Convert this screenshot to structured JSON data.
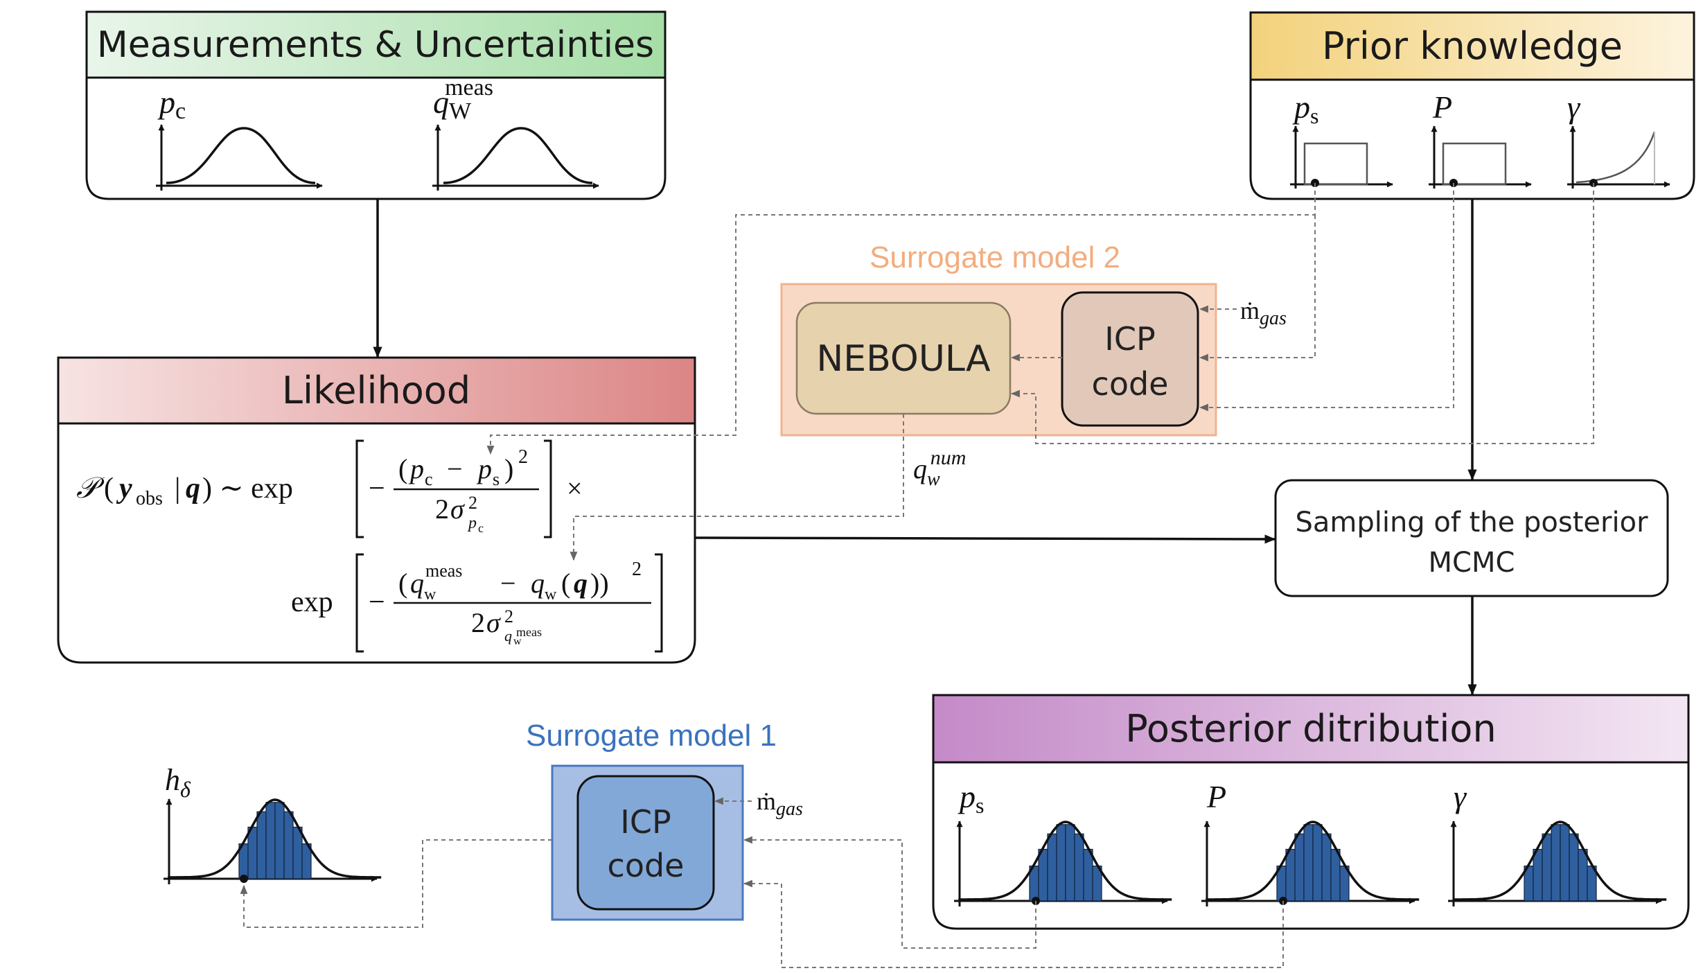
{
  "measurements": {
    "title": "Measurements & Uncertainties",
    "var1": "p",
    "var1_sub": "c",
    "var2": "q",
    "var2_sub": "W",
    "var2_sup": "meas"
  },
  "prior": {
    "title": "Prior knowledge",
    "var1": "p",
    "var1_sub": "s",
    "var2": "P",
    "var3": "γ"
  },
  "likelihood": {
    "title": "Likelihood"
  },
  "surrogate2": {
    "label": "Surrogate model 2",
    "neboula": "NEBOULA",
    "icp_line1": "ICP",
    "icp_line2": "code",
    "mgas": "ṁ",
    "mgas_sub": "gas",
    "qnum": "q",
    "qnum_sub": "w",
    "qnum_sup": "num"
  },
  "sampling": {
    "line1": "Sampling of the posterior",
    "line2": "MCMC"
  },
  "posterior": {
    "title": "Posterior ditribution",
    "var1": "p",
    "var1_sub": "s",
    "var2": "P",
    "var3": "γ"
  },
  "surrogate1": {
    "label": "Surrogate model 1",
    "icp_line1": "ICP",
    "icp_line2": "code",
    "mgas": "ṁ",
    "mgas_sub": "gas",
    "hdelta": "h",
    "hdelta_sub": "δ"
  },
  "colors": {
    "measurements_header_start": "#e9f5ea",
    "measurements_header_end": "#a6dea7",
    "prior_header_start": "#f3d27c",
    "prior_header_end": "#fdf3de",
    "likelihood_header_start": "#f7e3e3",
    "likelihood_header_end": "#dc8585",
    "posterior_header_start": "#c48ac8",
    "posterior_header_end": "#f3e6f3",
    "surrogate2_fill": "#f8d9c6",
    "surrogate2_border": "#f1b38d",
    "surrogate2_text": "#f2ad7e",
    "neboula_fill": "#e6d2ad",
    "icp2_fill": "#e2c8b9",
    "surrogate1_fill": "#a6bee3",
    "surrogate1_border": "#4a78c0",
    "surrogate1_text": "#3a72bd",
    "icp1_fill": "#82a8d8",
    "histogram_bar": "#2f5f9e"
  }
}
